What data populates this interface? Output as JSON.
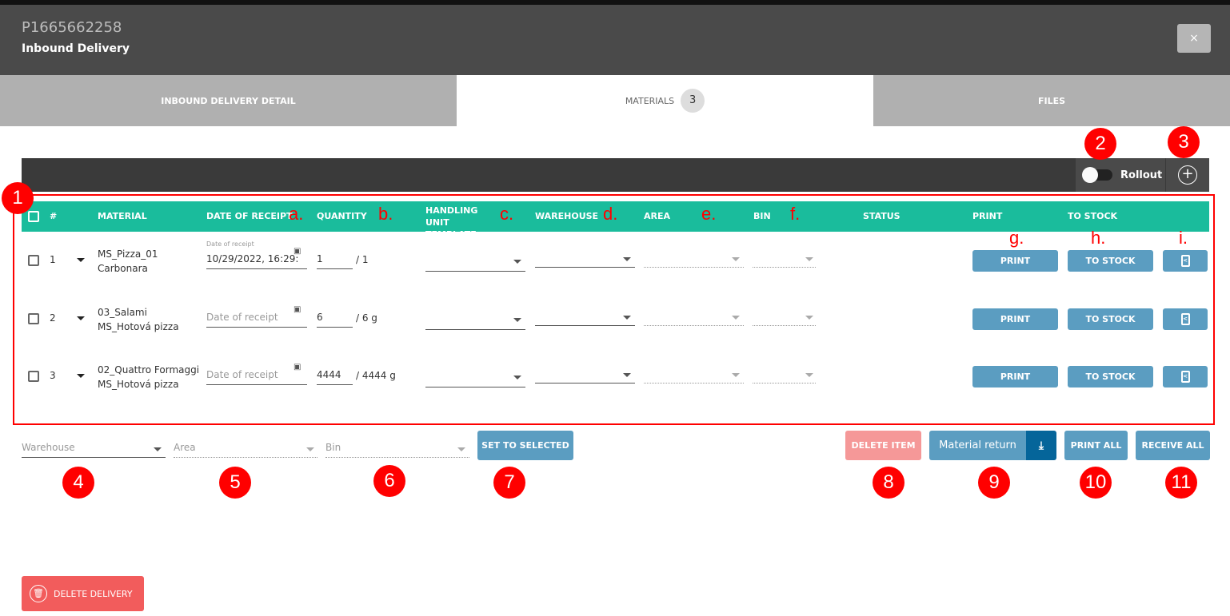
{
  "header": {
    "id": "P1665662258",
    "subtitle": "Inbound Delivery",
    "close_label": "×"
  },
  "tabs": [
    {
      "label": "INBOUND DELIVERY DETAIL"
    },
    {
      "label": "MATERIALS",
      "badge": "3"
    },
    {
      "label": "FILES"
    }
  ],
  "toolbar": {
    "rollout_label": "Rollout",
    "rollout_on": false,
    "add_icon": "plus-circle-icon"
  },
  "columns": [
    "#",
    "MATERIAL",
    "DATE OF RECEIPT",
    "QUANTITY",
    "HANDLING UNIT TEMPLATE",
    "WAREHOUSE",
    "AREA",
    "BIN",
    "STATUS",
    "PRINT",
    "TO STOCK"
  ],
  "rows": [
    {
      "num": "1",
      "material": "MS_Pizza_01",
      "sub": "Carbonara",
      "date_label": "Date of receipt",
      "date": "10/29/2022, 16:29:",
      "qty": "1",
      "total": "/ 1"
    },
    {
      "num": "2",
      "material": "03_Salami",
      "sub": "MS_Hotová pizza",
      "date_label": "",
      "date": "Date of receipt",
      "qty": "6",
      "total": "/ 6 g"
    },
    {
      "num": "3",
      "material": "02_Quattro Formaggi",
      "sub": "MS_Hotová pizza",
      "date_label": "",
      "date": "Date of receipt",
      "qty": "4444",
      "total": "/ 4444 g"
    }
  ],
  "row_buttons": {
    "print": "PRINT",
    "to_stock": "TO STOCK",
    "doc_icon": "document-share-icon"
  },
  "bottom": {
    "warehouse_ph": "Warehouse",
    "area_ph": "Area",
    "bin_ph": "Bin",
    "set_selected": "SET TO SELECTED",
    "delete_item": "DELETE ITEM",
    "material_return": "Material return",
    "print_all": "PRINT ALL",
    "receive_all": "RECEIVE ALL",
    "delete_delivery": "DELETE DELIVERY"
  },
  "annotations": {
    "numbers": [
      "1",
      "2",
      "3",
      "4",
      "5",
      "6",
      "7",
      "8",
      "9",
      "10",
      "11"
    ],
    "letters": [
      "a.",
      "b.",
      "c.",
      "d.",
      "e.",
      "f.",
      "g.",
      "h.",
      "i."
    ]
  },
  "colors": {
    "header": "#4a4a4a",
    "teal": "#1abc9c",
    "button": "#5b9dc1",
    "danger": "#f25c5c",
    "annotation": "#ff0000"
  }
}
